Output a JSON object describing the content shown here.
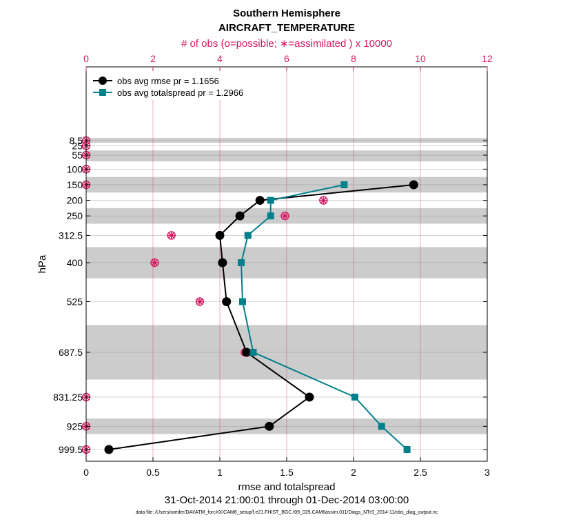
{
  "chart_data": {
    "type": "line",
    "title": "Southern Hemisphere",
    "subtitle": "AIRCRAFT_TEMPERATURE",
    "top_axis_label": "# of obs (o=possible; ∗=assimilated ) x 10000",
    "top_ticks": [
      "0",
      "2",
      "4",
      "6",
      "8",
      "10",
      "12"
    ],
    "top_range": [
      0,
      12
    ],
    "xlabel": "rmse and totalspread",
    "x_ticks": [
      "0",
      "0.5",
      "1",
      "1.5",
      "2",
      "2.5",
      "3"
    ],
    "xlim": [
      0,
      3
    ],
    "ylabel": "hPa",
    "levels": [
      "8.5",
      "25",
      "55",
      "100",
      "150",
      "200",
      "250",
      "312.5",
      "400",
      "525",
      "687.5",
      "831.25",
      "925",
      "999.5"
    ],
    "level_values": [
      8.5,
      25,
      55,
      100,
      150,
      200,
      250,
      312.5,
      400,
      525,
      687.5,
      831.25,
      925,
      999.5
    ],
    "shaded_layers_hPa": [
      [
        0,
        15
      ],
      [
        40,
        75
      ],
      [
        125,
        175
      ],
      [
        225,
        275
      ],
      [
        350,
        450
      ],
      [
        600,
        775
      ],
      [
        900,
        950
      ]
    ],
    "date_range": "31-Oct-2014 21:00:01 through 01-Dec-2014 03:00:00",
    "footer": "data file: /Users/raeder/DAI/ATM_forcXX/CAM6_setup/f.e21.FHIST_BGC.f09_025.CAM6assim.011/Diags_NTrS_2014-11/obs_diag_output.nc",
    "series": [
      {
        "name": "obs avg rmse",
        "legend": "obs avg rmse     pr = 1.1656",
        "color": "#000000",
        "marker": "circle",
        "levels": [
          150,
          200,
          250,
          312.5,
          400,
          525,
          687.5,
          831.25,
          925,
          999.5
        ],
        "values": [
          2.45,
          1.3,
          1.15,
          1.0,
          1.02,
          1.05,
          1.2,
          1.67,
          1.37,
          0.17
        ]
      },
      {
        "name": "obs avg totalspread",
        "legend": "obs avg totalspread pr = 1.2966",
        "color": "#00808a",
        "marker": "square",
        "levels": [
          150,
          200,
          250,
          312.5,
          400,
          525,
          687.5,
          831.25,
          925,
          999.5
        ],
        "values": [
          1.93,
          1.38,
          1.38,
          1.21,
          1.16,
          1.17,
          1.25,
          2.01,
          2.21,
          2.4
        ]
      }
    ],
    "obs_counts_x10000": {
      "color": "#d6175f",
      "levels": [
        8.5,
        25,
        55,
        100,
        150,
        200,
        250,
        312.5,
        400,
        525,
        687.5,
        831.25,
        925,
        999.5
      ],
      "possible": [
        0,
        0,
        0,
        0,
        0,
        7.1,
        5.95,
        2.55,
        2.05,
        3.4,
        4.75,
        0,
        0,
        0
      ],
      "assimilated": [
        0,
        0,
        0,
        0,
        0,
        7.1,
        5.95,
        2.55,
        2.05,
        3.4,
        4.75,
        0,
        0,
        0
      ]
    }
  }
}
